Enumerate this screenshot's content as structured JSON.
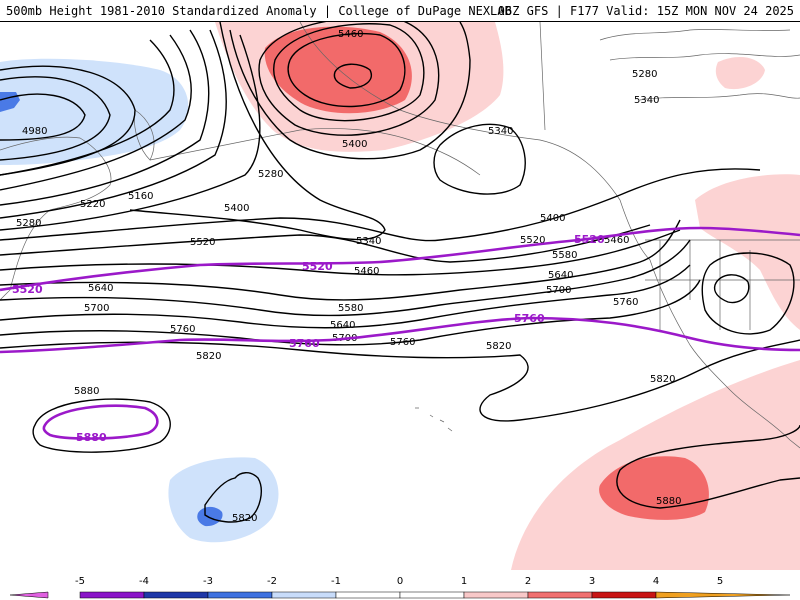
{
  "header": {
    "left": "500mb Height 1981-2010 Standardized Anomaly | College of DuPage NEXLAB",
    "right": "06Z GFS | F177 Valid: 15Z MON NOV 24 2025"
  },
  "contour_labels": {
    "c5460_top": "5460",
    "c5280_ne": "5280",
    "c5340_ne": "5340",
    "c4980": "4980",
    "c5340_mid": "5340",
    "c5400_top": "5400",
    "c5280_mid": "5280",
    "c5160": "5160",
    "c5220": "5220",
    "c5280_w": "5280",
    "c5400_mid": "5400",
    "c5340_low": "5340",
    "c5400_e": "5400",
    "c5520_e": "5520",
    "c5460_e": "5460",
    "c5520_mid": "5520",
    "c5460_mid": "5460",
    "c5580_e": "5580",
    "c5640_e": "5640",
    "c5700_e": "5700",
    "c5640_w": "5640",
    "c5580_mid": "5580",
    "c5700_w": "5700",
    "c5640_mid": "5640",
    "c5700_mid": "5700",
    "c5760_e": "5760",
    "c5760_w": "5760",
    "c5760_mid": "5760",
    "c5820_w": "5820",
    "c5820_mid": "5820",
    "c5820_e": "5820",
    "c5880_w": "5880",
    "c5880_se": "5880",
    "c5820_s": "5820"
  },
  "climo_labels": {
    "c5520_w": "5520",
    "c5520_mid": "5520",
    "c5520_e": "5520",
    "c5760_mid": "5760",
    "c5760_e": "5760",
    "c5880": "5880"
  },
  "colorbar": {
    "ticks": [
      "-5",
      "-4",
      "-3",
      "-2",
      "-1",
      "0",
      "1",
      "2",
      "3",
      "4",
      "5"
    ],
    "colors": [
      "#e060e0",
      "#8a14c8",
      "#1f38a8",
      "#3f72e0",
      "#c8dcfa",
      "#ffffff",
      "#ffffff",
      "#f8c8c8",
      "#f07070",
      "#c81414",
      "#f0a020"
    ]
  },
  "anomaly_colors": {
    "neg_light": "#cfe2fb",
    "neg_mid": "#4a7ae6",
    "pos_light": "#fcd3d3",
    "pos_mid": "#f26a6a"
  },
  "climo_color": "#9b19c9"
}
